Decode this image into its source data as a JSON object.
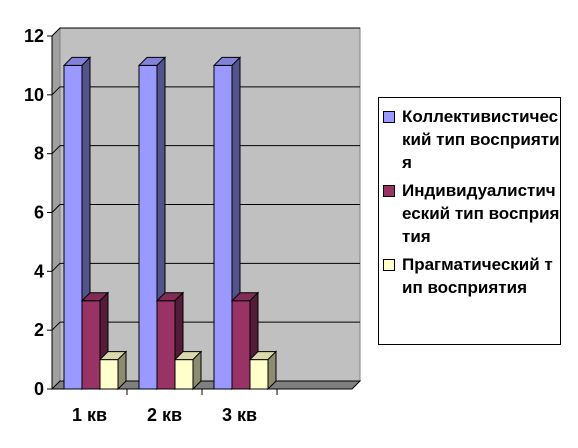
{
  "chart_data": {
    "type": "bar",
    "categories": [
      "1 кв",
      "2 кв",
      "3 кв",
      ""
    ],
    "series": [
      {
        "name": "Коллективистический тип восприятия",
        "values": [
          11,
          11,
          11,
          null
        ],
        "color": "#9999ff"
      },
      {
        "name": "Индивидуалистический тип восприятия",
        "values": [
          3,
          3,
          3,
          null
        ],
        "color": "#993366"
      },
      {
        "name": "Прагматический тип восприятия",
        "values": [
          1,
          1,
          1,
          null
        ],
        "color": "#ffffcc"
      }
    ],
    "title": "",
    "xlabel": "",
    "ylabel": "",
    "ylim": [
      0,
      12
    ],
    "yticks": [
      "0",
      "2",
      "4",
      "6",
      "8",
      "10",
      "12"
    ],
    "grid": true,
    "legend_position": "right",
    "style": "3d-column",
    "colors": {
      "wall": "#c0c0c0",
      "floor": "#808080",
      "gridline": "#000000"
    }
  }
}
